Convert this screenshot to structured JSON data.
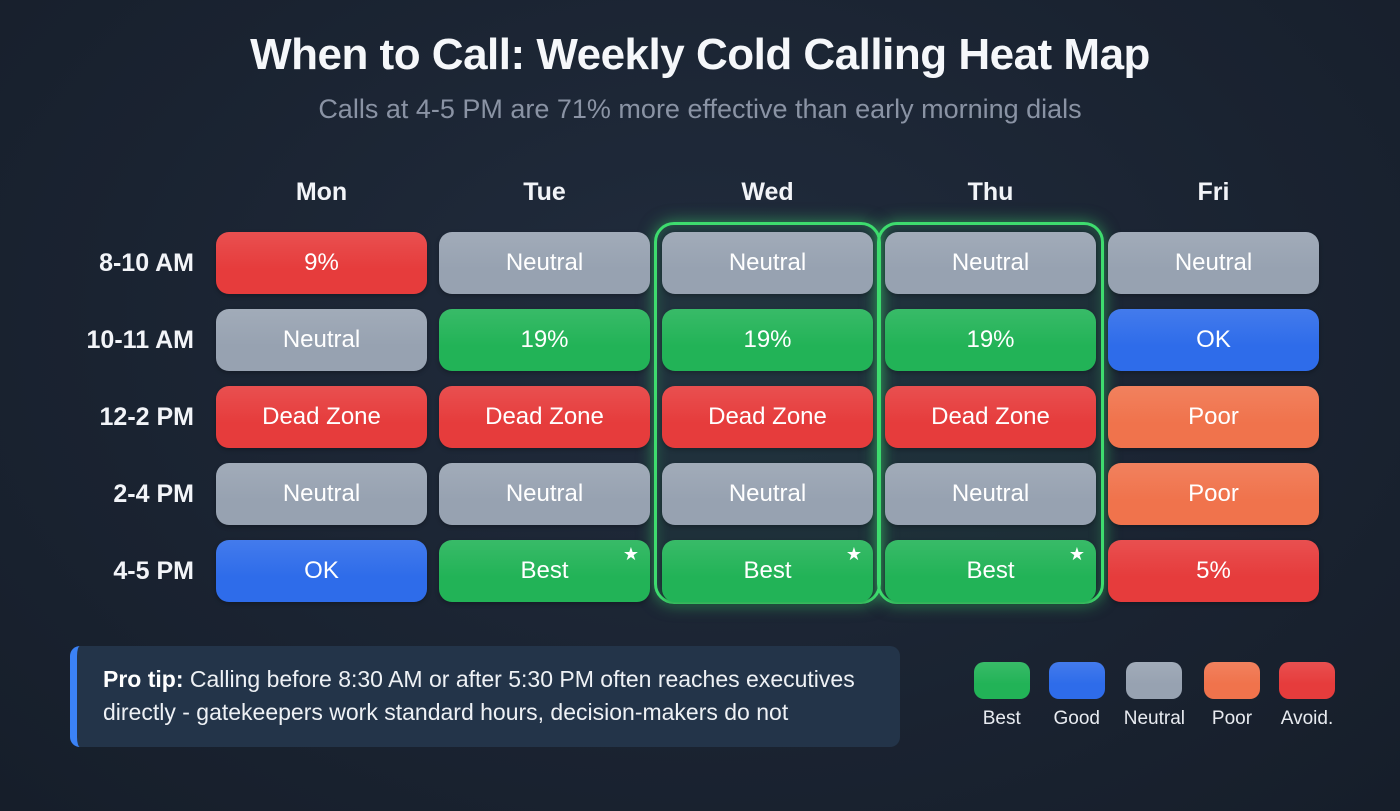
{
  "title": "When to Call: Weekly Cold Calling Heat Map",
  "subtitle": "Calls at 4-5 PM are 71% more effective than early morning dials",
  "chart_data": {
    "type": "heatmap",
    "columns": [
      "Mon",
      "Tue",
      "Wed",
      "Thu",
      "Fri"
    ],
    "rows": [
      "8-10 AM",
      "10-11 AM",
      "12-2 PM",
      "2-4 PM",
      "4-5 PM"
    ],
    "highlighted_columns": [
      "Wed",
      "Thu"
    ],
    "colors": {
      "best": "#22b357",
      "good": "#2e6cea",
      "neutral": "#97a2b1",
      "poor": "#f0734c",
      "avoid": "#e63c3c"
    },
    "cells": [
      [
        {
          "label": "9%",
          "status": "avoid"
        },
        {
          "label": "Neutral",
          "status": "neutral"
        },
        {
          "label": "Neutral",
          "status": "neutral"
        },
        {
          "label": "Neutral",
          "status": "neutral"
        },
        {
          "label": "Neutral",
          "status": "neutral"
        }
      ],
      [
        {
          "label": "Neutral",
          "status": "neutral"
        },
        {
          "label": "19%",
          "status": "best"
        },
        {
          "label": "19%",
          "status": "best"
        },
        {
          "label": "19%",
          "status": "best"
        },
        {
          "label": "OK",
          "status": "good"
        }
      ],
      [
        {
          "label": "Dead Zone",
          "status": "avoid"
        },
        {
          "label": "Dead Zone",
          "status": "avoid"
        },
        {
          "label": "Dead Zone",
          "status": "avoid"
        },
        {
          "label": "Dead Zone",
          "status": "avoid"
        },
        {
          "label": "Poor",
          "status": "poor"
        }
      ],
      [
        {
          "label": "Neutral",
          "status": "neutral"
        },
        {
          "label": "Neutral",
          "status": "neutral"
        },
        {
          "label": "Neutral",
          "status": "neutral"
        },
        {
          "label": "Neutral",
          "status": "neutral"
        },
        {
          "label": "Poor",
          "status": "poor"
        }
      ],
      [
        {
          "label": "OK",
          "status": "good"
        },
        {
          "label": "Best",
          "status": "best",
          "star": true
        },
        {
          "label": "Best",
          "status": "best",
          "star": true
        },
        {
          "label": "Best",
          "status": "best",
          "star": true
        },
        {
          "label": "5%",
          "status": "avoid"
        }
      ]
    ]
  },
  "pro_tip": {
    "label": "Pro tip:",
    "text": "Calling before 8:30 AM or after 5:30 PM often reaches executives directly - gatekeepers work standard hours, decision-makers do not"
  },
  "legend": [
    {
      "label": "Best",
      "status": "best"
    },
    {
      "label": "Good",
      "status": "good"
    },
    {
      "label": "Neutral",
      "status": "neutral"
    },
    {
      "label": "Poor",
      "status": "poor"
    },
    {
      "label": "Avoid.",
      "status": "avoid"
    }
  ]
}
